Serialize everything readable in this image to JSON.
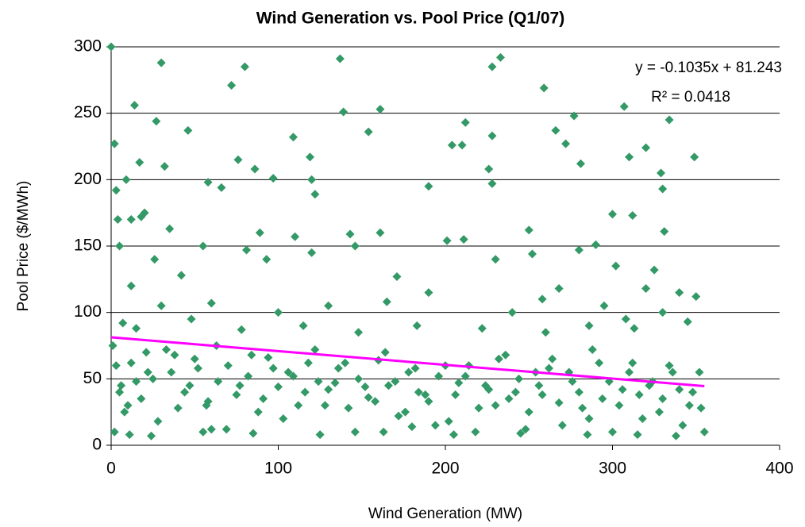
{
  "chart_data": {
    "type": "scatter",
    "title": "Wind Generation vs. Pool Price (Q1/07)",
    "x_label": "Wind Generation (MW)",
    "y_label": "Pool Price ($/MWh)",
    "annotations": [
      "y = -0.1035x + 81.243",
      "R² = 0.0418"
    ],
    "xlim": [
      0,
      400
    ],
    "xticks": [
      0,
      100,
      200,
      300,
      400
    ],
    "ylim": [
      0,
      300
    ],
    "yticks": [
      0,
      50,
      100,
      150,
      200,
      250,
      300
    ],
    "grid": true,
    "color": "#339966",
    "trendline": {
      "slope": -0.1035,
      "intercept": 81.243,
      "x_range": [
        0,
        355
      ],
      "color": "#ff00ff"
    },
    "x": [
      0,
      30,
      137,
      233,
      228,
      80,
      72,
      259,
      14,
      139,
      161,
      307,
      334,
      27,
      212,
      2,
      46,
      154,
      109,
      228,
      204,
      210,
      277,
      266,
      272,
      320,
      349,
      310,
      76,
      32,
      17,
      119,
      226,
      329,
      86,
      281,
      58,
      9,
      97,
      120,
      66,
      3,
      190,
      330,
      122,
      228,
      18,
      12,
      20,
      4,
      35,
      89,
      143,
      250,
      161,
      201,
      110,
      331,
      312,
      300,
      290,
      55,
      81,
      146,
      230,
      211,
      280,
      302,
      325,
      5,
      26,
      42,
      93,
      120,
      171,
      252,
      268,
      320,
      340,
      350,
      12,
      30,
      60,
      100,
      130,
      165,
      190,
      240,
      258,
      295,
      308,
      330,
      7,
      15,
      48,
      78,
      115,
      148,
      183,
      222,
      260,
      286,
      313,
      345,
      1,
      3,
      6,
      10,
      22,
      38,
      5,
      12,
      18,
      25,
      33,
      40,
      47,
      52,
      58,
      64,
      70,
      75,
      82,
      88,
      94,
      100,
      106,
      112,
      118,
      124,
      130,
      136,
      142,
      148,
      154,
      160,
      166,
      172,
      178,
      184,
      190,
      196,
      202,
      208,
      214,
      220,
      226,
      232,
      238,
      244,
      250,
      256,
      262,
      268,
      274,
      280,
      286,
      292,
      298,
      304,
      310,
      316,
      322,
      328,
      334,
      340,
      346,
      352,
      355,
      2,
      8,
      15,
      21,
      28,
      36,
      44,
      50,
      57,
      63,
      69,
      77,
      84,
      91,
      97,
      103,
      109,
      116,
      122,
      128,
      134,
      140,
      146,
      152,
      158,
      164,
      170,
      176,
      182,
      188,
      194,
      200,
      206,
      212,
      218,
      224,
      230,
      236,
      242,
      248,
      254,
      258,
      264,
      270,
      276,
      282,
      288,
      294,
      300,
      306,
      312,
      318,
      324,
      330,
      336,
      342,
      348,
      353,
      11,
      24,
      55,
      85,
      125,
      163,
      205,
      245,
      285,
      315,
      338,
      60,
      180
    ],
    "values": [
      300,
      288,
      291,
      292,
      285,
      285,
      271,
      269,
      256,
      251,
      253,
      255,
      245,
      244,
      243,
      227,
      237,
      236,
      232,
      233,
      226,
      226,
      248,
      237,
      227,
      224,
      217,
      217,
      215,
      210,
      213,
      217,
      208,
      205,
      208,
      212,
      198,
      200,
      201,
      200,
      194,
      192,
      195,
      193,
      189,
      197,
      172,
      170,
      175,
      170,
      163,
      160,
      159,
      162,
      160,
      154,
      157,
      161,
      173,
      174,
      151,
      150,
      147,
      150,
      140,
      155,
      147,
      135,
      132,
      150,
      140,
      128,
      140,
      145,
      127,
      144,
      118,
      118,
      115,
      112,
      120,
      105,
      107,
      100,
      105,
      108,
      115,
      100,
      110,
      105,
      95,
      100,
      92,
      88,
      95,
      87,
      90,
      85,
      90,
      88,
      85,
      90,
      88,
      93,
      75,
      60,
      45,
      30,
      55,
      68,
      40,
      62,
      35,
      50,
      72,
      28,
      45,
      58,
      33,
      48,
      60,
      38,
      52,
      25,
      66,
      44,
      55,
      30,
      62,
      48,
      42,
      58,
      28,
      50,
      36,
      64,
      45,
      22,
      55,
      40,
      33,
      52,
      18,
      47,
      60,
      28,
      42,
      65,
      35,
      50,
      25,
      45,
      58,
      32,
      55,
      40,
      20,
      62,
      48,
      30,
      55,
      38,
      45,
      25,
      60,
      42,
      30,
      55,
      10,
      10,
      25,
      48,
      70,
      18,
      55,
      40,
      65,
      30,
      75,
      12,
      45,
      68,
      35,
      58,
      20,
      52,
      40,
      72,
      30,
      47,
      62,
      10,
      44,
      33,
      70,
      48,
      25,
      58,
      38,
      15,
      60,
      38,
      52,
      10,
      45,
      30,
      68,
      40,
      12,
      55,
      38,
      65,
      15,
      48,
      28,
      72,
      35,
      10,
      42,
      62,
      20,
      48,
      35,
      55,
      15,
      40,
      28,
      8,
      7,
      10,
      9,
      8,
      10,
      8,
      9,
      8,
      8,
      7,
      12,
      14
    ]
  }
}
